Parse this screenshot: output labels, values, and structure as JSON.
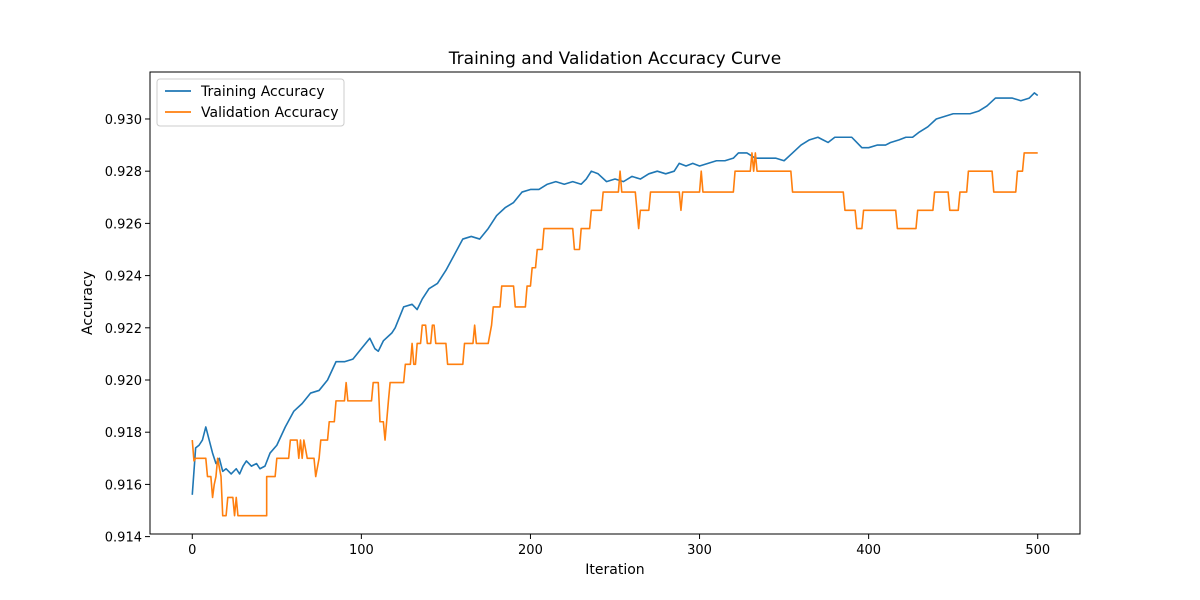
{
  "chart_data": {
    "type": "line",
    "title": "Training and Validation Accuracy Curve",
    "xlabel": "Iteration",
    "ylabel": "Accuracy",
    "xlim": [
      -25,
      525
    ],
    "ylim": [
      0.9141,
      0.9318
    ],
    "xticks": [
      0,
      100,
      200,
      300,
      400,
      500
    ],
    "yticks": [
      0.914,
      0.916,
      0.918,
      0.92,
      0.922,
      0.924,
      0.926,
      0.928,
      0.93
    ],
    "ytick_labels": [
      "0.914",
      "0.916",
      "0.918",
      "0.920",
      "0.922",
      "0.924",
      "0.926",
      "0.928",
      "0.930"
    ],
    "grid": false,
    "legend_position": "upper-left",
    "series": [
      {
        "name": "Training Accuracy",
        "color": "#1f77b4",
        "points": [
          [
            0,
            0.9156
          ],
          [
            2,
            0.9174
          ],
          [
            4,
            0.9175
          ],
          [
            6,
            0.9177
          ],
          [
            8,
            0.9182
          ],
          [
            10,
            0.9177
          ],
          [
            12,
            0.9172
          ],
          [
            14,
            0.9168
          ],
          [
            16,
            0.917
          ],
          [
            18,
            0.9165
          ],
          [
            20,
            0.9166
          ],
          [
            23,
            0.9164
          ],
          [
            26,
            0.9166
          ],
          [
            28,
            0.9164
          ],
          [
            30,
            0.9167
          ],
          [
            32,
            0.9169
          ],
          [
            35,
            0.9167
          ],
          [
            38,
            0.9168
          ],
          [
            40,
            0.9166
          ],
          [
            43,
            0.9167
          ],
          [
            46,
            0.9172
          ],
          [
            50,
            0.9175
          ],
          [
            55,
            0.9182
          ],
          [
            60,
            0.9188
          ],
          [
            65,
            0.9191
          ],
          [
            70,
            0.9195
          ],
          [
            75,
            0.9196
          ],
          [
            80,
            0.92
          ],
          [
            85,
            0.9207
          ],
          [
            90,
            0.9207
          ],
          [
            95,
            0.9208
          ],
          [
            100,
            0.9212
          ],
          [
            105,
            0.9216
          ],
          [
            108,
            0.9212
          ],
          [
            110,
            0.9211
          ],
          [
            113,
            0.9215
          ],
          [
            118,
            0.9218
          ],
          [
            120,
            0.922
          ],
          [
            125,
            0.9228
          ],
          [
            130,
            0.9229
          ],
          [
            133,
            0.9227
          ],
          [
            136,
            0.9231
          ],
          [
            140,
            0.9235
          ],
          [
            145,
            0.9237
          ],
          [
            150,
            0.9242
          ],
          [
            155,
            0.9248
          ],
          [
            160,
            0.9254
          ],
          [
            165,
            0.9255
          ],
          [
            170,
            0.9254
          ],
          [
            175,
            0.9258
          ],
          [
            180,
            0.9263
          ],
          [
            185,
            0.9266
          ],
          [
            190,
            0.9268
          ],
          [
            195,
            0.9272
          ],
          [
            200,
            0.9273
          ],
          [
            205,
            0.9273
          ],
          [
            210,
            0.9275
          ],
          [
            215,
            0.9276
          ],
          [
            220,
            0.9275
          ],
          [
            225,
            0.9276
          ],
          [
            230,
            0.9275
          ],
          [
            233,
            0.9277
          ],
          [
            236,
            0.928
          ],
          [
            240,
            0.9279
          ],
          [
            245,
            0.9276
          ],
          [
            250,
            0.9277
          ],
          [
            255,
            0.9276
          ],
          [
            260,
            0.9278
          ],
          [
            265,
            0.9277
          ],
          [
            270,
            0.9279
          ],
          [
            275,
            0.928
          ],
          [
            280,
            0.9279
          ],
          [
            285,
            0.928
          ],
          [
            288,
            0.9283
          ],
          [
            292,
            0.9282
          ],
          [
            296,
            0.9283
          ],
          [
            300,
            0.9282
          ],
          [
            305,
            0.9283
          ],
          [
            310,
            0.9284
          ],
          [
            315,
            0.9284
          ],
          [
            320,
            0.9285
          ],
          [
            323,
            0.9287
          ],
          [
            328,
            0.9287
          ],
          [
            333,
            0.9285
          ],
          [
            338,
            0.9285
          ],
          [
            345,
            0.9285
          ],
          [
            350,
            0.9284
          ],
          [
            355,
            0.9287
          ],
          [
            360,
            0.929
          ],
          [
            365,
            0.9292
          ],
          [
            370,
            0.9293
          ],
          [
            373,
            0.9292
          ],
          [
            376,
            0.9291
          ],
          [
            380,
            0.9293
          ],
          [
            385,
            0.9293
          ],
          [
            390,
            0.9293
          ],
          [
            393,
            0.9291
          ],
          [
            396,
            0.9289
          ],
          [
            400,
            0.9289
          ],
          [
            405,
            0.929
          ],
          [
            410,
            0.929
          ],
          [
            413,
            0.9291
          ],
          [
            418,
            0.9292
          ],
          [
            422,
            0.9293
          ],
          [
            426,
            0.9293
          ],
          [
            430,
            0.9295
          ],
          [
            435,
            0.9297
          ],
          [
            440,
            0.93
          ],
          [
            445,
            0.9301
          ],
          [
            450,
            0.9302
          ],
          [
            455,
            0.9302
          ],
          [
            460,
            0.9302
          ],
          [
            465,
            0.9303
          ],
          [
            470,
            0.9305
          ],
          [
            475,
            0.9308
          ],
          [
            480,
            0.9308
          ],
          [
            485,
            0.9308
          ],
          [
            490,
            0.9307
          ],
          [
            495,
            0.9308
          ],
          [
            498,
            0.931
          ],
          [
            500,
            0.9309
          ]
        ]
      },
      {
        "name": "Validation Accuracy",
        "color": "#ff7f0e",
        "points": [
          [
            0,
            0.9177
          ],
          [
            1,
            0.9169
          ],
          [
            2,
            0.917
          ],
          [
            5,
            0.917
          ],
          [
            8,
            0.917
          ],
          [
            9,
            0.9163
          ],
          [
            11,
            0.9163
          ],
          [
            12,
            0.9155
          ],
          [
            13,
            0.916
          ],
          [
            14,
            0.9163
          ],
          [
            15,
            0.917
          ],
          [
            17,
            0.9163
          ],
          [
            18,
            0.9148
          ],
          [
            20,
            0.9148
          ],
          [
            21,
            0.9155
          ],
          [
            24,
            0.9155
          ],
          [
            25,
            0.9148
          ],
          [
            26,
            0.9155
          ],
          [
            27,
            0.9148
          ],
          [
            35,
            0.9148
          ],
          [
            44,
            0.9148
          ],
          [
            44,
            0.9163
          ],
          [
            49,
            0.9163
          ],
          [
            50,
            0.917
          ],
          [
            57,
            0.917
          ],
          [
            58,
            0.9177
          ],
          [
            62,
            0.9177
          ],
          [
            63,
            0.917
          ],
          [
            64,
            0.9177
          ],
          [
            65,
            0.917
          ],
          [
            66,
            0.9177
          ],
          [
            68,
            0.917
          ],
          [
            72,
            0.917
          ],
          [
            73,
            0.9163
          ],
          [
            75,
            0.917
          ],
          [
            76,
            0.9177
          ],
          [
            80,
            0.9177
          ],
          [
            81,
            0.9184
          ],
          [
            84,
            0.9184
          ],
          [
            85,
            0.9192
          ],
          [
            90,
            0.9192
          ],
          [
            91,
            0.9199
          ],
          [
            92,
            0.9192
          ],
          [
            106,
            0.9192
          ],
          [
            107,
            0.9199
          ],
          [
            110,
            0.9199
          ],
          [
            111,
            0.9184
          ],
          [
            113,
            0.9184
          ],
          [
            114,
            0.9177
          ],
          [
            116,
            0.9192
          ],
          [
            117,
            0.9199
          ],
          [
            125,
            0.9199
          ],
          [
            126,
            0.9206
          ],
          [
            129,
            0.9206
          ],
          [
            130,
            0.9214
          ],
          [
            131,
            0.9206
          ],
          [
            132,
            0.9206
          ],
          [
            133,
            0.9214
          ],
          [
            135,
            0.9214
          ],
          [
            136,
            0.9221
          ],
          [
            138,
            0.9221
          ],
          [
            139,
            0.9214
          ],
          [
            141,
            0.9214
          ],
          [
            142,
            0.9221
          ],
          [
            143,
            0.9221
          ],
          [
            144,
            0.9214
          ],
          [
            150,
            0.9214
          ],
          [
            151,
            0.9206
          ],
          [
            160,
            0.9206
          ],
          [
            161,
            0.9214
          ],
          [
            166,
            0.9214
          ],
          [
            167,
            0.9221
          ],
          [
            168,
            0.9214
          ],
          [
            175,
            0.9214
          ],
          [
            177,
            0.9221
          ],
          [
            178,
            0.9228
          ],
          [
            182,
            0.9228
          ],
          [
            183,
            0.9236
          ],
          [
            190,
            0.9236
          ],
          [
            191,
            0.9228
          ],
          [
            197,
            0.9228
          ],
          [
            198,
            0.9236
          ],
          [
            200,
            0.9236
          ],
          [
            201,
            0.9243
          ],
          [
            203,
            0.9243
          ],
          [
            204,
            0.925
          ],
          [
            207,
            0.925
          ],
          [
            208,
            0.9258
          ],
          [
            225,
            0.9258
          ],
          [
            226,
            0.925
          ],
          [
            229,
            0.925
          ],
          [
            230,
            0.9258
          ],
          [
            235,
            0.9258
          ],
          [
            236,
            0.9265
          ],
          [
            242,
            0.9265
          ],
          [
            243,
            0.9272
          ],
          [
            252,
            0.9272
          ],
          [
            253,
            0.928
          ],
          [
            254,
            0.9272
          ],
          [
            262,
            0.9272
          ],
          [
            263,
            0.9265
          ],
          [
            264,
            0.9258
          ],
          [
            265,
            0.9265
          ],
          [
            270,
            0.9265
          ],
          [
            271,
            0.9272
          ],
          [
            288,
            0.9272
          ],
          [
            289,
            0.9265
          ],
          [
            290,
            0.9272
          ],
          [
            300,
            0.9272
          ],
          [
            301,
            0.928
          ],
          [
            302,
            0.9272
          ],
          [
            320,
            0.9272
          ],
          [
            321,
            0.928
          ],
          [
            330,
            0.928
          ],
          [
            331,
            0.9287
          ],
          [
            332,
            0.928
          ],
          [
            333,
            0.9287
          ],
          [
            334,
            0.928
          ],
          [
            354,
            0.928
          ],
          [
            355,
            0.9272
          ],
          [
            385,
            0.9272
          ],
          [
            386,
            0.9265
          ],
          [
            392,
            0.9265
          ],
          [
            393,
            0.9258
          ],
          [
            396,
            0.9258
          ],
          [
            397,
            0.9265
          ],
          [
            416,
            0.9265
          ],
          [
            417,
            0.9258
          ],
          [
            428,
            0.9258
          ],
          [
            429,
            0.9265
          ],
          [
            438,
            0.9265
          ],
          [
            439,
            0.9272
          ],
          [
            447,
            0.9272
          ],
          [
            448,
            0.9265
          ],
          [
            453,
            0.9265
          ],
          [
            454,
            0.9272
          ],
          [
            458,
            0.9272
          ],
          [
            459,
            0.928
          ],
          [
            473,
            0.928
          ],
          [
            474,
            0.9272
          ],
          [
            487,
            0.9272
          ],
          [
            488,
            0.928
          ],
          [
            491,
            0.928
          ],
          [
            492,
            0.9287
          ],
          [
            500,
            0.9287
          ]
        ]
      }
    ]
  }
}
